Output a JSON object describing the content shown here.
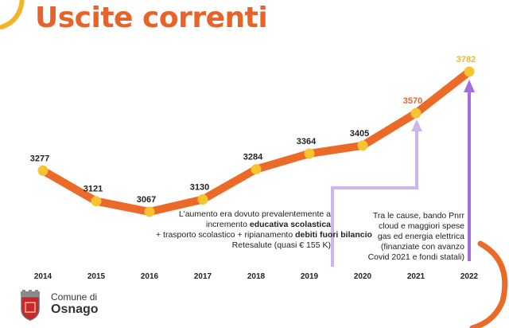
{
  "title": "Uscite correnti",
  "colors": {
    "line": "#ec6a28",
    "marker": "#f7c332",
    "title": "#e8632a",
    "arrow": "#c8b0e8",
    "arrow_strong": "#a36fe0",
    "label_highlight": "#e8632a",
    "label_last": "#f0b72a"
  },
  "chart_data": {
    "type": "line",
    "title": "Uscite correnti",
    "xlabel": "",
    "ylabel": "",
    "categories": [
      "2014",
      "2015",
      "2016",
      "2017",
      "2018",
      "2019",
      "2020",
      "2021",
      "2022"
    ],
    "values": [
      3277,
      3121,
      3067,
      3130,
      3284,
      3364,
      3405,
      3570,
      3782
    ],
    "data_labels": [
      "3277",
      "3121",
      "3067",
      "3130",
      "3284",
      "3364",
      "3405",
      "3570",
      "3782"
    ],
    "grid": false,
    "legend": "none"
  },
  "annotations": {
    "note_2016_2018": {
      "line1": "L'aumento era dovuto prevalentemente a",
      "line2_pre": "incremento ",
      "line2_bold": "educativa scolastica",
      "line3_pre": "+ trasporto scolastico + ripianamento ",
      "line3_bold": "debiti fuori bilancio",
      "line4": "Retesalute (quasi € 155 K)"
    },
    "note_2021_2022": {
      "line1": "Tra le cause, bando Pnrr",
      "line2": "cloud e maggiori spese",
      "line3": "gas ed energia elettrica",
      "line4": "(finanziate con avanzo",
      "line5": "Covid 2021 e fondi statali)"
    }
  },
  "logo": {
    "line1": "Comune di",
    "line2": "Osnago",
    "icon": "coat-of-arms-icon"
  },
  "decoration": {
    "top_left_arc": "orange-arc-decoration",
    "bottom_right_arc": "orange-arc-decoration"
  }
}
